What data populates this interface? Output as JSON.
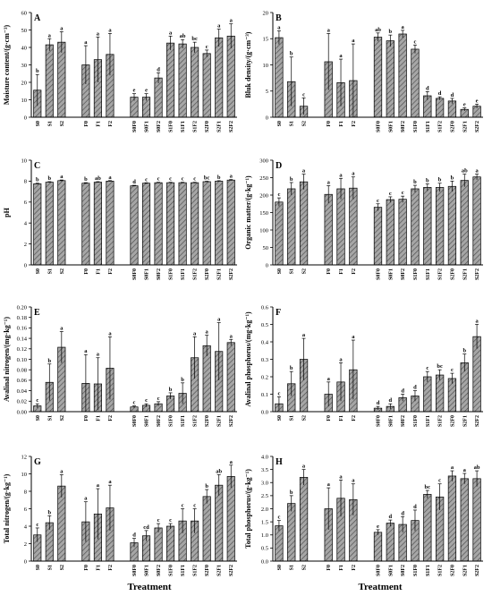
{
  "chart_data": [
    {
      "type": "bar",
      "letter": "A",
      "ylabel": "Moisture content/(g·cm⁻³)",
      "ylim": [
        0,
        60
      ],
      "yticks": [
        0,
        10,
        20,
        30,
        40,
        50,
        60
      ],
      "ytick_labels": [
        "0",
        "10",
        "20",
        "30",
        "40",
        "50",
        "60"
      ],
      "categories": [
        "S0",
        "S1",
        "S2",
        "F0",
        "F1",
        "F2",
        "S0F0",
        "S0F1",
        "S0F2",
        "S1F0",
        "S1F1",
        "S1F2",
        "S2F0",
        "S2F1",
        "S2F2"
      ],
      "values": [
        15.5,
        41.5,
        43,
        30,
        33,
        36,
        11.5,
        11.5,
        22.5,
        42.5,
        42,
        40,
        36.5,
        45.5,
        46.5
      ],
      "errors": [
        9,
        3.5,
        6,
        11,
        13,
        12,
        2,
        2,
        3,
        4,
        2.5,
        3,
        2,
        5,
        7
      ],
      "letters": [
        "b",
        "a",
        "a",
        "a",
        "a",
        "a",
        "e",
        "e",
        "d",
        "a",
        "ab",
        "bc",
        "c",
        "a",
        "a"
      ]
    },
    {
      "type": "bar",
      "letter": "B",
      "ylabel": "Bluk density/(g·cm⁻³)",
      "ylim": [
        0,
        20
      ],
      "yticks": [
        0,
        5,
        10,
        15,
        20
      ],
      "ytick_labels": [
        "0",
        "5",
        "10",
        "15",
        "20"
      ],
      "categories": [
        "S0",
        "S1",
        "S2",
        "F0",
        "F1",
        "F2",
        "S0F0",
        "S0F1",
        "S0F2",
        "S1F0",
        "S1F1",
        "S1F2",
        "S2F0",
        "S2F1",
        "S2F2"
      ],
      "values": [
        15.2,
        6.8,
        2.1,
        10.6,
        6.6,
        7.0,
        15.3,
        14.6,
        15.9,
        13.0,
        4.1,
        3.6,
        3.1,
        1.5,
        2.1
      ],
      "errors": [
        1.3,
        4.7,
        1.6,
        5.4,
        4.5,
        7.0,
        0.8,
        1.1,
        0.7,
        0.8,
        0.8,
        0.3,
        0.5,
        0.3,
        0.4
      ],
      "letters": [
        "a",
        "b",
        "c",
        "a",
        "a",
        "a",
        "ab",
        "b",
        "a",
        "c",
        "d",
        "d",
        "d",
        "e",
        "e"
      ]
    },
    {
      "type": "bar",
      "letter": "C",
      "ylabel": "pH",
      "ylim": [
        0,
        10
      ],
      "yticks": [
        0,
        2,
        4,
        6,
        8,
        10
      ],
      "ytick_labels": [
        "0",
        "2",
        "4",
        "6",
        "8",
        "10"
      ],
      "categories": [
        "S0",
        "S1",
        "S2",
        "F0",
        "F1",
        "F2",
        "S0F0",
        "S0F1",
        "S0F2",
        "S1F0",
        "S1F1",
        "S1F2",
        "S2F0",
        "S2F1",
        "S2F2"
      ],
      "values": [
        7.75,
        7.9,
        8.05,
        7.8,
        7.9,
        8.0,
        7.55,
        7.8,
        7.85,
        7.85,
        7.85,
        7.85,
        7.95,
        8.0,
        8.1
      ],
      "errors": [
        0.05,
        0.05,
        0.06,
        0.05,
        0.05,
        0.05,
        0.05,
        0.04,
        0.04,
        0.04,
        0.04,
        0.04,
        0.04,
        0.04,
        0.05
      ],
      "letters": [
        "b",
        "b",
        "a",
        "b",
        "ab",
        "a",
        "d",
        "c",
        "c",
        "c",
        "c",
        "c",
        "bc",
        "b",
        "a"
      ]
    },
    {
      "type": "bar",
      "letter": "D",
      "ylabel": "Organic matter/(g·kg⁻¹)",
      "ylim": [
        0,
        300
      ],
      "yticks": [
        0,
        50,
        100,
        150,
        200,
        250,
        300
      ],
      "ytick_labels": [
        "0",
        "50",
        "100",
        "150",
        "200",
        "250",
        "300"
      ],
      "categories": [
        "S0",
        "S1",
        "S2",
        "F0",
        "F1",
        "F2",
        "S0F0",
        "S0F1",
        "S0F2",
        "S1F0",
        "S1F1",
        "S1F2",
        "S2F0",
        "S2F1",
        "S2F2"
      ],
      "values": [
        180,
        218,
        238,
        202,
        218,
        220,
        165,
        187,
        188,
        218,
        222,
        222,
        225,
        242,
        252
      ],
      "errors": [
        12,
        18,
        22,
        25,
        30,
        32,
        10,
        8,
        9,
        10,
        10,
        12,
        15,
        18,
        8
      ],
      "letters": [
        "c",
        "b",
        "a",
        "a",
        "a",
        "a",
        "c",
        "c",
        "c",
        "b",
        "b",
        "b",
        "b",
        "ab",
        "a"
      ]
    },
    {
      "type": "bar",
      "letter": "E",
      "ylabel": "Avalinal nitrogen/(mg·kg⁻¹)",
      "ylim": [
        0,
        0.2
      ],
      "yticks": [
        0,
        0.02,
        0.04,
        0.06,
        0.08,
        0.1,
        0.12,
        0.14,
        0.16,
        0.18,
        0.2
      ],
      "ytick_labels": [
        "0.00",
        "0.02",
        "0.04",
        "0.06",
        "0.08",
        "0.10",
        "0.12",
        "0.14",
        "0.16",
        "0.18",
        "0.20"
      ],
      "categories": [
        "S0",
        "S1",
        "S2",
        "F0",
        "F1",
        "F2",
        "S0F0",
        "S0F1",
        "S0F2",
        "S1F0",
        "S1F1",
        "S1F2",
        "S2F0",
        "S2F1",
        "S2F2"
      ],
      "values": [
        0.011,
        0.056,
        0.123,
        0.054,
        0.053,
        0.083,
        0.009,
        0.012,
        0.015,
        0.03,
        0.035,
        0.103,
        0.126,
        0.115,
        0.132
      ],
      "errors": [
        0.004,
        0.035,
        0.03,
        0.055,
        0.05,
        0.06,
        0.002,
        0.003,
        0.004,
        0.006,
        0.02,
        0.04,
        0.02,
        0.055,
        0.006
      ],
      "letters": [
        "c",
        "b",
        "a",
        "a",
        "a",
        "a",
        "c",
        "c",
        "c",
        "b",
        "b",
        "a",
        "a",
        "a",
        "a"
      ]
    },
    {
      "type": "bar",
      "letter": "F",
      "ylabel": "Avalinal phosphorus/(mg·kg⁻¹)",
      "ylim": [
        0,
        0.6
      ],
      "yticks": [
        0,
        0.1,
        0.2,
        0.3,
        0.4,
        0.5,
        0.6
      ],
      "ytick_labels": [
        "0.0",
        "0.1",
        "0.2",
        "0.3",
        "0.4",
        "0.5",
        "0.6"
      ],
      "categories": [
        "S0",
        "S1",
        "S2",
        "F0",
        "F1",
        "F2",
        "S0F0",
        "S0F1",
        "S0F2",
        "S1F0",
        "S1F1",
        "S1F2",
        "S2F0",
        "S2F1",
        "S2F2"
      ],
      "values": [
        0.045,
        0.16,
        0.3,
        0.1,
        0.17,
        0.24,
        0.02,
        0.03,
        0.08,
        0.09,
        0.2,
        0.21,
        0.19,
        0.28,
        0.43
      ],
      "errors": [
        0.04,
        0.07,
        0.12,
        0.07,
        0.11,
        0.17,
        0.01,
        0.015,
        0.02,
        0.03,
        0.03,
        0.03,
        0.03,
        0.05,
        0.07
      ],
      "letters": [
        "c",
        "b",
        "a",
        "a",
        "a",
        "a",
        "d",
        "d",
        "d",
        "d",
        "c",
        "bc",
        "c",
        "b",
        "a"
      ]
    },
    {
      "type": "bar",
      "letter": "G",
      "ylabel": "Total nitrogen/(g·kg⁻¹)",
      "ylim": [
        0,
        12
      ],
      "yticks": [
        0,
        2,
        4,
        6,
        8,
        10,
        12
      ],
      "ytick_labels": [
        "0",
        "2",
        "4",
        "6",
        "8",
        "10",
        "12"
      ],
      "categories": [
        "S0",
        "S1",
        "S2",
        "F0",
        "F1",
        "F2",
        "S0F0",
        "S0F1",
        "S0F2",
        "S1F0",
        "S1F1",
        "S1F2",
        "S2F0",
        "S2F1",
        "S2F2"
      ],
      "values": [
        3.0,
        4.4,
        8.6,
        4.5,
        5.4,
        6.1,
        2.1,
        2.9,
        3.8,
        4.0,
        4.6,
        4.6,
        7.4,
        8.7,
        9.7
      ],
      "errors": [
        0.8,
        0.8,
        1.3,
        2.3,
        2.9,
        2.6,
        0.5,
        0.6,
        0.5,
        0.3,
        1.4,
        1.4,
        0.8,
        1.2,
        1.3
      ],
      "letters": [
        "c",
        "b",
        "a",
        "a",
        "a",
        "a",
        "d",
        "cd",
        "c",
        "c",
        "c",
        "c",
        "b",
        "ab",
        "a"
      ]
    },
    {
      "type": "bar",
      "letter": "H",
      "ylabel": "Total phosphorus/(g·kg⁻¹)",
      "ylim": [
        0,
        4.0
      ],
      "yticks": [
        0,
        0.5,
        1.0,
        1.5,
        2.0,
        2.5,
        3.0,
        3.5,
        4.0
      ],
      "ytick_labels": [
        "0.0",
        "0.5",
        "1.0",
        "1.5",
        "2.0",
        "2.5",
        "3.0",
        "3.5",
        "4.0"
      ],
      "categories": [
        "S0",
        "S1",
        "S2",
        "F0",
        "F1",
        "F2",
        "S0F0",
        "S0F1",
        "S0F2",
        "S1F0",
        "S1F1",
        "S1F2",
        "S2F0",
        "S2F1",
        "S2F2"
      ],
      "values": [
        1.35,
        2.2,
        3.2,
        2.0,
        2.4,
        2.35,
        1.1,
        1.45,
        1.4,
        1.55,
        2.55,
        2.45,
        3.25,
        3.15,
        3.15
      ],
      "errors": [
        0.2,
        0.3,
        0.3,
        0.8,
        0.7,
        0.6,
        0.1,
        0.12,
        0.3,
        0.4,
        0.15,
        0.5,
        0.2,
        0.2,
        0.3
      ],
      "letters": [
        "c",
        "b",
        "a",
        "a",
        "a",
        "a",
        "e",
        "d",
        "d",
        "d",
        "bc",
        "c",
        "a",
        "a",
        "ab"
      ]
    }
  ],
  "xlabels": [
    "Treatment",
    "Treatment"
  ],
  "colors": {
    "bar_fill": "#a6a6a6",
    "hatch": "#4d4d4d",
    "axis": "#000000"
  }
}
